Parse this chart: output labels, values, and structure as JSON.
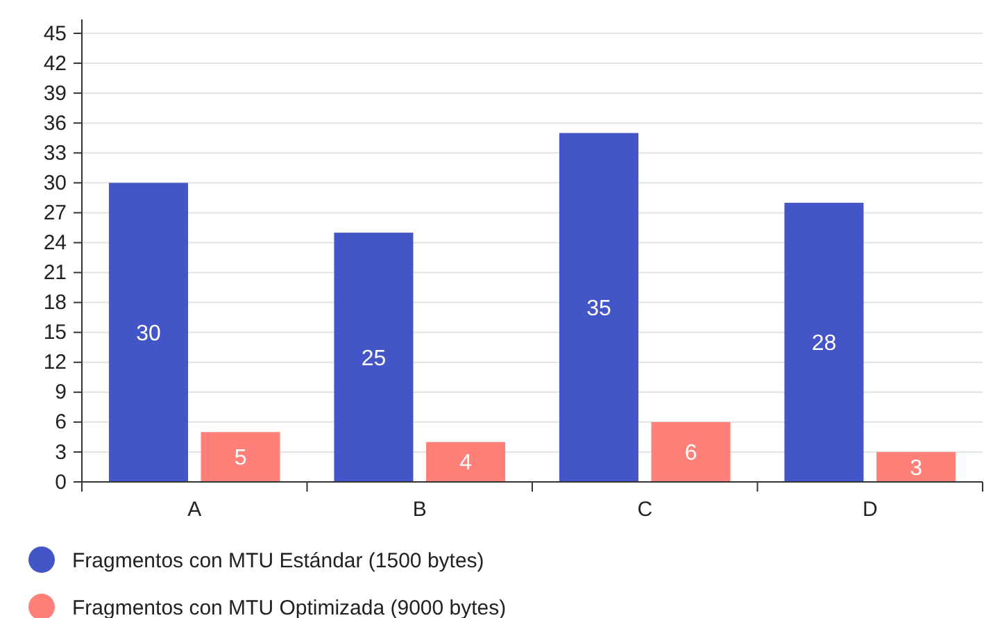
{
  "chart_data": {
    "type": "bar",
    "categories": [
      "A",
      "B",
      "C",
      "D"
    ],
    "series": [
      {
        "name": "Fragmentos con MTU Estándar (1500 bytes)",
        "color": "#4355c7",
        "values": [
          30,
          25,
          35,
          28
        ]
      },
      {
        "name": "Fragmentos con MTU Optimizada (9000 bytes)",
        "color": "#ff7f79",
        "values": [
          5,
          4,
          6,
          3
        ]
      }
    ],
    "ylim": [
      0,
      45
    ],
    "yticks": [
      0,
      3,
      6,
      9,
      12,
      15,
      18,
      21,
      24,
      27,
      30,
      33,
      36,
      39,
      42,
      45
    ],
    "grid": "y",
    "legend": "bottom",
    "data_labels": true
  }
}
